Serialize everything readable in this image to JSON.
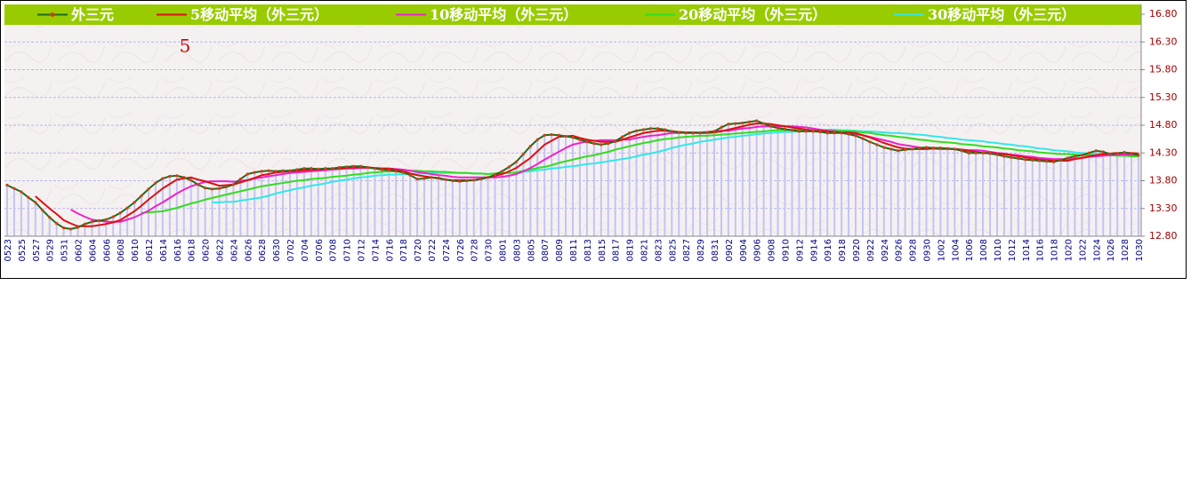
{
  "chart_data": {
    "type": "line",
    "annotation": "5",
    "ylim": [
      12.8,
      16.8
    ],
    "yticks": [
      {
        "value": 12.8,
        "label": "12.80"
      },
      {
        "value": 13.3,
        "label": "13.30"
      },
      {
        "value": 13.8,
        "label": "13.80"
      },
      {
        "value": 14.3,
        "label": "14.30"
      },
      {
        "value": 14.8,
        "label": "14.80"
      },
      {
        "value": 15.3,
        "label": "15.30"
      },
      {
        "value": 15.8,
        "label": "15.80"
      },
      {
        "value": 16.3,
        "label": "16.30"
      },
      {
        "value": 16.8,
        "label": "16.80"
      }
    ],
    "grid": true,
    "legend": "top",
    "legend_color": "#99cc00",
    "bar_color": "#c4c4f4",
    "categories": [
      "0523",
      null,
      "0525",
      null,
      "0527",
      null,
      "0529",
      null,
      "0531",
      null,
      "0602",
      null,
      "0604",
      null,
      "0606",
      null,
      "0608",
      null,
      "0610",
      null,
      "0612",
      null,
      "0614",
      null,
      "0616",
      null,
      "0618",
      null,
      "0620",
      null,
      "0622",
      null,
      "0624",
      null,
      "0626",
      null,
      "0628",
      null,
      "0630",
      null,
      "0702",
      null,
      "0704",
      null,
      "0706",
      null,
      "0708",
      null,
      "0710",
      null,
      "0712",
      null,
      "0714",
      null,
      "0716",
      null,
      "0718",
      null,
      "0720",
      null,
      "0722",
      null,
      "0724",
      null,
      "0726",
      null,
      "0728",
      null,
      "0730",
      null,
      "0801",
      null,
      "0803",
      null,
      "0805",
      null,
      "0807",
      null,
      "0809",
      null,
      "0811",
      null,
      "0813",
      null,
      "0815",
      null,
      "0817",
      null,
      "0819",
      null,
      "0821",
      null,
      "0823",
      null,
      "0825",
      null,
      "0827",
      null,
      "0829",
      null,
      "0831",
      null,
      "0902",
      null,
      "0904",
      null,
      "0906",
      null,
      "0908",
      null,
      "0910",
      null,
      "0912",
      null,
      "0914",
      null,
      "0916",
      null,
      "0918",
      null,
      "0920",
      null,
      "0922",
      null,
      "0924",
      null,
      "0926",
      null,
      "0928",
      null,
      "0930",
      null,
      "1002",
      null,
      "1004",
      null,
      "1006",
      null,
      "1008",
      null,
      "1010",
      null,
      "1012",
      null,
      "1014",
      null,
      "1016",
      null,
      "1018",
      null,
      "1020",
      null,
      "1022",
      null,
      "1024",
      null,
      "1026",
      null,
      "1028",
      null,
      "1030"
    ],
    "series": [
      {
        "name": "外三元",
        "color": "#1f6b1f",
        "marker_color": "#d04010",
        "values": [
          13.72,
          13.66,
          13.6,
          13.5,
          13.41,
          13.27,
          13.14,
          13.03,
          12.95,
          12.93,
          12.96,
          13.02,
          13.06,
          13.08,
          13.1,
          13.15,
          13.22,
          13.31,
          13.41,
          13.53,
          13.65,
          13.76,
          13.84,
          13.88,
          13.89,
          13.86,
          13.81,
          13.73,
          13.67,
          13.65,
          13.66,
          13.69,
          13.73,
          13.83,
          13.92,
          13.95,
          13.97,
          13.98,
          13.97,
          13.98,
          13.98,
          14.0,
          14.02,
          14.02,
          14.01,
          14.02,
          14.02,
          14.04,
          14.05,
          14.06,
          14.06,
          14.04,
          14.02,
          14.0,
          13.99,
          13.97,
          13.95,
          13.9,
          13.83,
          13.84,
          13.86,
          13.85,
          13.82,
          13.8,
          13.79,
          13.8,
          13.81,
          13.83,
          13.86,
          13.91,
          13.97,
          14.05,
          14.14,
          14.28,
          14.42,
          14.54,
          14.62,
          14.63,
          14.62,
          14.6,
          14.58,
          14.54,
          14.5,
          14.47,
          14.45,
          14.47,
          14.51,
          14.59,
          14.66,
          14.7,
          14.72,
          14.74,
          14.74,
          14.72,
          14.69,
          14.67,
          14.66,
          14.66,
          14.66,
          14.67,
          14.69,
          14.76,
          14.82,
          14.83,
          14.84,
          14.86,
          14.88,
          14.83,
          14.78,
          14.75,
          14.73,
          14.71,
          14.69,
          14.69,
          14.69,
          14.68,
          14.66,
          14.66,
          14.66,
          14.64,
          14.61,
          14.56,
          14.5,
          14.45,
          14.4,
          14.37,
          14.34,
          14.36,
          14.37,
          14.39,
          14.4,
          14.39,
          14.39,
          14.38,
          14.37,
          14.34,
          14.3,
          14.3,
          14.3,
          14.29,
          14.27,
          14.24,
          14.22,
          14.2,
          14.18,
          14.17,
          14.16,
          14.15,
          14.14,
          14.17,
          14.21,
          14.24,
          14.26,
          14.3,
          14.34,
          14.32,
          14.28,
          14.29,
          14.31,
          14.29,
          14.26
        ]
      },
      {
        "name": "5移动平均（外三元）",
        "color": "#dd1111",
        "values": [
          null,
          null,
          null,
          null,
          13.52,
          13.41,
          13.3,
          13.2,
          13.09,
          13.03,
          12.98,
          12.98,
          12.98,
          13.0,
          13.02,
          13.05,
          13.09,
          13.17,
          13.25,
          13.35,
          13.46,
          13.56,
          13.66,
          13.74,
          13.82,
          13.84,
          13.86,
          13.82,
          13.79,
          13.75,
          13.71,
          13.72,
          13.73,
          13.77,
          13.81,
          13.85,
          13.9,
          13.92,
          13.95,
          13.96,
          13.97,
          13.98,
          13.99,
          14.0,
          14.0,
          14.01,
          14.02,
          14.02,
          14.03,
          14.04,
          14.04,
          14.04,
          14.03,
          14.02,
          14.02,
          14.0,
          13.97,
          13.93,
          13.9,
          13.88,
          13.86,
          13.84,
          13.82,
          13.81,
          13.81,
          13.81,
          13.81,
          13.83,
          13.86,
          13.89,
          13.92,
          13.97,
          14.03,
          14.12,
          14.21,
          14.33,
          14.45,
          14.52,
          14.59,
          14.6,
          14.61,
          14.57,
          14.54,
          14.52,
          14.5,
          14.5,
          14.5,
          14.54,
          14.58,
          14.62,
          14.66,
          14.68,
          14.7,
          14.7,
          14.69,
          14.68,
          14.67,
          14.67,
          14.66,
          14.66,
          14.67,
          14.69,
          14.72,
          14.75,
          14.78,
          14.81,
          14.83,
          14.83,
          14.82,
          14.8,
          14.78,
          14.76,
          14.74,
          14.72,
          14.7,
          14.7,
          14.69,
          14.68,
          14.67,
          14.67,
          14.66,
          14.62,
          14.58,
          14.53,
          14.48,
          14.44,
          14.4,
          14.38,
          14.37,
          14.37,
          14.37,
          14.38,
          14.38,
          14.38,
          14.37,
          14.36,
          14.34,
          14.32,
          14.3,
          14.3,
          14.29,
          14.28,
          14.26,
          14.24,
          14.22,
          14.2,
          14.18,
          14.17,
          14.16,
          14.16,
          14.16,
          14.19,
          14.21,
          14.24,
          14.26,
          14.28,
          14.29,
          14.3,
          14.3,
          14.3,
          14.29
        ]
      },
      {
        "name": "10移动平均（外三元）",
        "color": "#ee22cc",
        "values": [
          null,
          null,
          null,
          null,
          null,
          null,
          null,
          null,
          null,
          13.28,
          13.21,
          13.15,
          13.1,
          13.08,
          13.06,
          13.06,
          13.06,
          13.1,
          13.14,
          13.2,
          13.26,
          13.34,
          13.41,
          13.49,
          13.57,
          13.64,
          13.7,
          13.74,
          13.78,
          13.79,
          13.79,
          13.79,
          13.78,
          13.8,
          13.81,
          13.84,
          13.86,
          13.88,
          13.9,
          13.92,
          13.94,
          13.95,
          13.96,
          13.97,
          13.98,
          13.99,
          14.0,
          14.01,
          14.02,
          14.02,
          14.03,
          14.03,
          14.03,
          14.02,
          14.02,
          14.01,
          14.0,
          13.98,
          13.96,
          13.94,
          13.92,
          13.9,
          13.89,
          13.87,
          13.86,
          13.86,
          13.86,
          13.86,
          13.86,
          13.86,
          13.87,
          13.89,
          13.92,
          13.97,
          14.03,
          14.1,
          14.18,
          14.25,
          14.32,
          14.39,
          14.45,
          14.48,
          14.51,
          14.52,
          14.53,
          14.53,
          14.53,
          14.54,
          14.54,
          14.57,
          14.59,
          14.61,
          14.62,
          14.64,
          14.66,
          14.66,
          14.67,
          14.67,
          14.67,
          14.68,
          14.69,
          14.7,
          14.7,
          14.72,
          14.74,
          14.75,
          14.77,
          14.78,
          14.78,
          14.78,
          14.78,
          14.78,
          14.77,
          14.76,
          14.74,
          14.72,
          14.7,
          14.69,
          14.67,
          14.66,
          14.64,
          14.62,
          14.59,
          14.56,
          14.53,
          14.5,
          14.46,
          14.44,
          14.42,
          14.4,
          14.38,
          14.38,
          14.37,
          14.37,
          14.37,
          14.36,
          14.35,
          14.35,
          14.34,
          14.32,
          14.3,
          14.29,
          14.27,
          14.26,
          14.24,
          14.23,
          14.21,
          14.2,
          14.19,
          14.19,
          14.18,
          14.2,
          14.21,
          14.23,
          14.24,
          14.25,
          14.26,
          14.27,
          14.27,
          14.27,
          14.27
        ]
      },
      {
        "name": "20移动平均（外三元）",
        "color": "#33dd22",
        "values": [
          null,
          null,
          null,
          null,
          null,
          null,
          null,
          null,
          null,
          null,
          null,
          null,
          null,
          null,
          null,
          null,
          null,
          null,
          null,
          13.22,
          13.23,
          13.24,
          13.25,
          13.28,
          13.31,
          13.35,
          13.39,
          13.42,
          13.46,
          13.49,
          13.52,
          13.55,
          13.58,
          13.61,
          13.64,
          13.67,
          13.7,
          13.72,
          13.74,
          13.76,
          13.78,
          13.8,
          13.81,
          13.83,
          13.84,
          13.85,
          13.87,
          13.88,
          13.89,
          13.91,
          13.92,
          13.94,
          13.95,
          13.96,
          13.97,
          13.97,
          13.98,
          13.98,
          13.98,
          13.97,
          13.97,
          13.96,
          13.96,
          13.95,
          13.94,
          13.94,
          13.93,
          13.93,
          13.92,
          13.93,
          13.94,
          13.94,
          13.95,
          13.98,
          14.0,
          14.03,
          14.05,
          14.08,
          14.12,
          14.15,
          14.18,
          14.21,
          14.24,
          14.26,
          14.29,
          14.32,
          14.36,
          14.39,
          14.42,
          14.45,
          14.48,
          14.5,
          14.53,
          14.55,
          14.56,
          14.58,
          14.59,
          14.6,
          14.61,
          14.61,
          14.62,
          14.63,
          14.64,
          14.65,
          14.66,
          14.67,
          14.68,
          14.69,
          14.7,
          14.71,
          14.71,
          14.72,
          14.72,
          14.72,
          14.71,
          14.71,
          14.7,
          14.7,
          14.7,
          14.69,
          14.69,
          14.67,
          14.66,
          14.64,
          14.62,
          14.61,
          14.59,
          14.58,
          14.56,
          14.54,
          14.53,
          14.51,
          14.5,
          14.49,
          14.48,
          14.46,
          14.45,
          14.44,
          14.42,
          14.41,
          14.4,
          14.38,
          14.37,
          14.35,
          14.34,
          14.33,
          14.31,
          14.3,
          14.29,
          14.28,
          14.28,
          14.27,
          14.26,
          14.26,
          14.26,
          14.26,
          14.26,
          14.25,
          14.25,
          14.24,
          14.24
        ]
      },
      {
        "name": "30移动平均（外三元）",
        "color": "#33e8e8",
        "values": [
          null,
          null,
          null,
          null,
          null,
          null,
          null,
          null,
          null,
          null,
          null,
          null,
          null,
          null,
          null,
          null,
          null,
          null,
          null,
          null,
          null,
          null,
          null,
          null,
          null,
          null,
          null,
          null,
          null,
          13.41,
          13.41,
          13.42,
          13.42,
          13.44,
          13.46,
          13.48,
          13.5,
          13.53,
          13.57,
          13.6,
          13.63,
          13.66,
          13.68,
          13.71,
          13.73,
          13.75,
          13.78,
          13.8,
          13.82,
          13.84,
          13.86,
          13.87,
          13.89,
          13.9,
          13.91,
          13.91,
          13.92,
          13.92,
          13.93,
          13.93,
          13.94,
          13.94,
          13.94,
          13.94,
          13.94,
          13.94,
          13.93,
          13.93,
          13.92,
          13.93,
          13.94,
          13.94,
          13.95,
          13.96,
          13.97,
          13.99,
          14.0,
          14.02,
          14.03,
          14.05,
          14.06,
          14.08,
          14.1,
          14.11,
          14.13,
          14.15,
          14.17,
          14.19,
          14.21,
          14.24,
          14.27,
          14.29,
          14.32,
          14.35,
          14.39,
          14.42,
          14.45,
          14.47,
          14.5,
          14.52,
          14.54,
          14.56,
          14.58,
          14.59,
          14.61,
          14.62,
          14.64,
          14.65,
          14.66,
          14.67,
          14.68,
          14.68,
          14.69,
          14.7,
          14.71,
          14.71,
          14.72,
          14.72,
          14.71,
          14.71,
          14.7,
          14.69,
          14.69,
          14.68,
          14.67,
          14.66,
          14.66,
          14.65,
          14.64,
          14.63,
          14.62,
          14.6,
          14.59,
          14.57,
          14.56,
          14.54,
          14.53,
          14.52,
          14.51,
          14.49,
          14.48,
          14.46,
          14.45,
          14.43,
          14.42,
          14.4,
          14.38,
          14.37,
          14.35,
          14.34,
          14.33,
          14.31,
          14.3,
          14.29,
          14.29,
          14.28,
          14.27,
          14.27,
          14.26,
          14.26,
          14.26
        ]
      }
    ]
  }
}
